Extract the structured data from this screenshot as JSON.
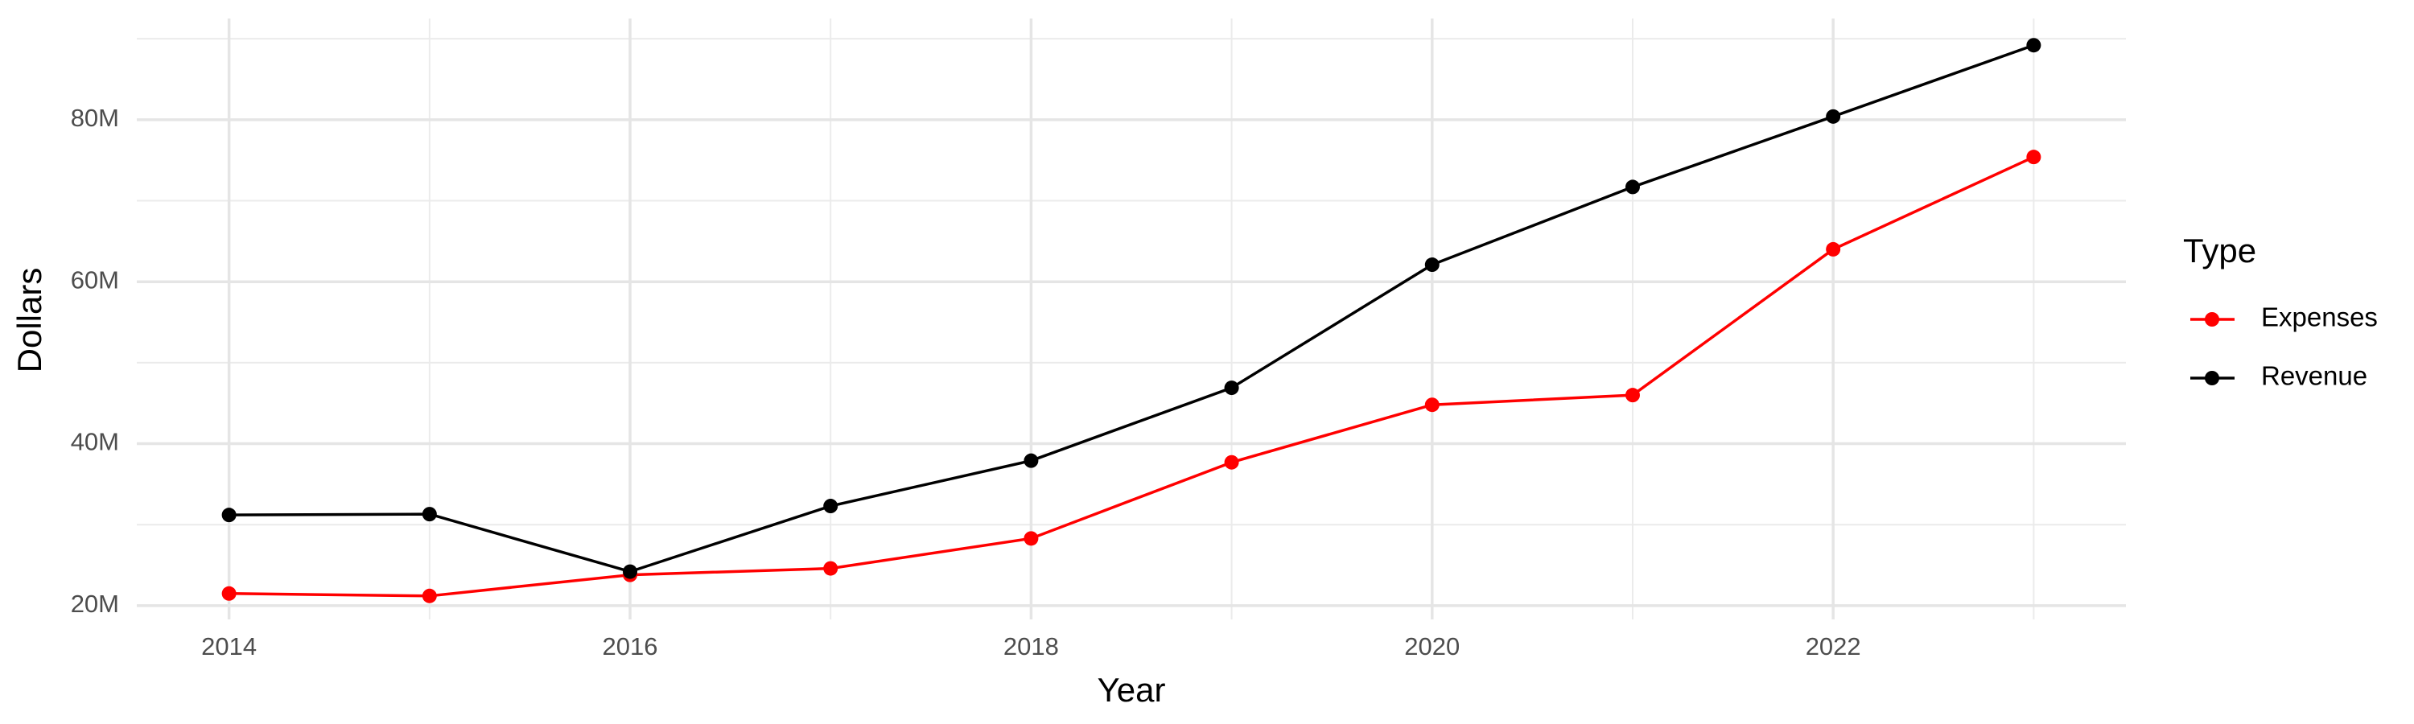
{
  "chart_data": {
    "type": "line",
    "x_label": "Year",
    "y_label": "Dollars",
    "legend_title": "Type",
    "x": [
      2014,
      2015,
      2016,
      2017,
      2018,
      2019,
      2020,
      2021,
      2022,
      2023
    ],
    "series": [
      {
        "name": "Expenses",
        "color": "#ff0000",
        "values": [
          21500000,
          21200000,
          23800000,
          24600000,
          28300000,
          37700000,
          44800000,
          46000000,
          64000000,
          75400000
        ]
      },
      {
        "name": "Revenue",
        "color": "#000000",
        "values": [
          31200000,
          31300000,
          24200000,
          32300000,
          37900000,
          46900000,
          62100000,
          71700000,
          80400000,
          89200000
        ]
      }
    ],
    "xlim": [
      2013.54,
      2023.46
    ],
    "xticks": [
      2014,
      2016,
      2018,
      2020,
      2022
    ],
    "ylim": [
      18300000,
      92500000
    ],
    "yticks": [
      {
        "value": 20000000,
        "label": "20M"
      },
      {
        "value": 40000000,
        "label": "40M"
      },
      {
        "value": 60000000,
        "label": "60M"
      },
      {
        "value": 80000000,
        "label": "80M"
      }
    ],
    "grid": true,
    "legend": "right"
  }
}
